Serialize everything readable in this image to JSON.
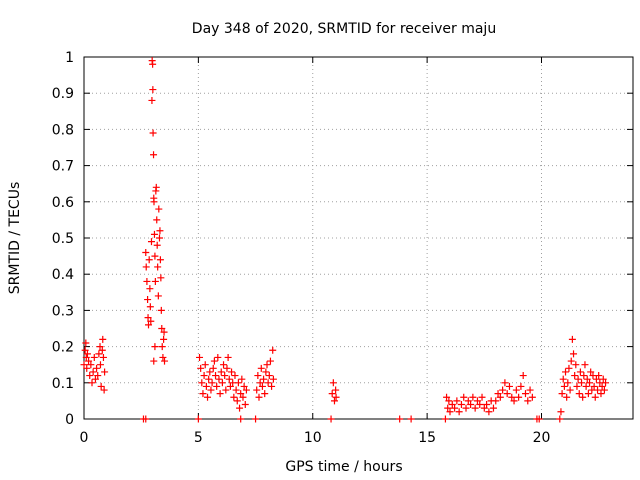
{
  "chart_data": {
    "type": "scatter",
    "title": "Day 348 of 2020, SRMTID for receiver maju",
    "xlabel": "GPS time / hours",
    "ylabel": "SRMTID / TECUs",
    "xlim": [
      0,
      24
    ],
    "ylim": [
      0,
      1
    ],
    "xticks": [
      0,
      5,
      10,
      15,
      20
    ],
    "xtick_labels": [
      "0",
      "5",
      "10",
      "15",
      "20"
    ],
    "yticks": [
      0,
      0.1,
      0.2,
      0.3,
      0.4,
      0.5,
      0.6,
      0.7,
      0.8,
      0.9,
      1
    ],
    "ytick_labels": [
      "0",
      "0.1",
      "0.2",
      "0.3",
      "0.4",
      "0.5",
      "0.6",
      "0.7",
      "0.8",
      "0.9",
      "1"
    ],
    "grid": true,
    "marker": "+",
    "color": "#ff0000",
    "series": [
      {
        "name": "SRMTID",
        "points": [
          [
            0.0,
            0.15
          ],
          [
            0.05,
            0.19
          ],
          [
            0.08,
            0.21
          ],
          [
            0.1,
            0.17
          ],
          [
            0.12,
            0.14
          ],
          [
            0.15,
            0.18
          ],
          [
            0.2,
            0.16
          ],
          [
            0.25,
            0.12
          ],
          [
            0.3,
            0.15
          ],
          [
            0.35,
            0.1
          ],
          [
            0.4,
            0.13
          ],
          [
            0.45,
            0.17
          ],
          [
            0.5,
            0.11
          ],
          [
            0.55,
            0.14
          ],
          [
            0.6,
            0.12
          ],
          [
            0.65,
            0.18
          ],
          [
            0.7,
            0.2
          ],
          [
            0.72,
            0.15
          ],
          [
            0.75,
            0.09
          ],
          [
            0.8,
            0.19
          ],
          [
            0.82,
            0.22
          ],
          [
            0.85,
            0.17
          ],
          [
            0.88,
            0.08
          ],
          [
            0.9,
            0.13
          ],
          [
            2.6,
            0.0
          ],
          [
            2.7,
            0.0
          ],
          [
            2.7,
            0.46
          ],
          [
            2.72,
            0.42
          ],
          [
            2.75,
            0.38
          ],
          [
            2.78,
            0.33
          ],
          [
            2.8,
            0.28
          ],
          [
            2.82,
            0.26
          ],
          [
            2.85,
            0.44
          ],
          [
            2.88,
            0.36
          ],
          [
            2.9,
            0.31
          ],
          [
            2.92,
            0.27
          ],
          [
            2.95,
            0.49
          ],
          [
            2.97,
            0.88
          ],
          [
            2.98,
            0.99
          ],
          [
            3.0,
            0.98
          ],
          [
            3.01,
            0.91
          ],
          [
            3.02,
            0.79
          ],
          [
            3.04,
            0.73
          ],
          [
            3.05,
            0.61
          ],
          [
            3.06,
            0.6
          ],
          [
            3.08,
            0.51
          ],
          [
            3.1,
            0.45
          ],
          [
            3.12,
            0.38
          ],
          [
            3.14,
            0.63
          ],
          [
            3.16,
            0.64
          ],
          [
            3.18,
            0.55
          ],
          [
            3.2,
            0.48
          ],
          [
            3.22,
            0.42
          ],
          [
            3.25,
            0.34
          ],
          [
            3.27,
            0.58
          ],
          [
            3.3,
            0.5
          ],
          [
            3.32,
            0.52
          ],
          [
            3.34,
            0.44
          ],
          [
            3.36,
            0.39
          ],
          [
            3.38,
            0.3
          ],
          [
            3.4,
            0.25
          ],
          [
            3.42,
            0.2
          ],
          [
            3.45,
            0.17
          ],
          [
            3.48,
            0.22
          ],
          [
            3.5,
            0.24
          ],
          [
            3.52,
            0.16
          ],
          [
            3.05,
            0.16
          ],
          [
            3.1,
            0.2
          ],
          [
            5.0,
            0.0
          ],
          [
            5.05,
            0.17
          ],
          [
            5.1,
            0.14
          ],
          [
            5.15,
            0.1
          ],
          [
            5.2,
            0.07
          ],
          [
            5.25,
            0.12
          ],
          [
            5.3,
            0.15
          ],
          [
            5.35,
            0.09
          ],
          [
            5.4,
            0.06
          ],
          [
            5.45,
            0.11
          ],
          [
            5.5,
            0.13
          ],
          [
            5.55,
            0.08
          ],
          [
            5.6,
            0.1
          ],
          [
            5.65,
            0.14
          ],
          [
            5.7,
            0.16
          ],
          [
            5.75,
            0.12
          ],
          [
            5.8,
            0.09
          ],
          [
            5.85,
            0.17
          ],
          [
            5.9,
            0.11
          ],
          [
            5.95,
            0.07
          ],
          [
            6.0,
            0.13
          ],
          [
            6.05,
            0.1
          ],
          [
            6.1,
            0.15
          ],
          [
            6.15,
            0.12
          ],
          [
            6.2,
            0.08
          ],
          [
            6.25,
            0.14
          ],
          [
            6.3,
            0.17
          ],
          [
            6.35,
            0.11
          ],
          [
            6.4,
            0.09
          ],
          [
            6.45,
            0.13
          ],
          [
            6.5,
            0.1
          ],
          [
            6.55,
            0.06
          ],
          [
            6.6,
            0.12
          ],
          [
            6.65,
            0.08
          ],
          [
            6.7,
            0.05
          ],
          [
            6.75,
            0.1
          ],
          [
            6.8,
            0.03
          ],
          [
            6.85,
            0.07
          ],
          [
            6.9,
            0.11
          ],
          [
            6.95,
            0.06
          ],
          [
            7.0,
            0.09
          ],
          [
            7.05,
            0.04
          ],
          [
            7.1,
            0.08
          ],
          [
            6.85,
            0.0
          ],
          [
            7.5,
            0.0
          ],
          [
            7.55,
            0.08
          ],
          [
            7.6,
            0.12
          ],
          [
            7.65,
            0.06
          ],
          [
            7.7,
            0.1
          ],
          [
            7.75,
            0.14
          ],
          [
            7.8,
            0.09
          ],
          [
            7.85,
            0.11
          ],
          [
            7.9,
            0.07
          ],
          [
            7.95,
            0.13
          ],
          [
            8.0,
            0.15
          ],
          [
            8.05,
            0.1
          ],
          [
            8.1,
            0.12
          ],
          [
            8.15,
            0.16
          ],
          [
            8.2,
            0.09
          ],
          [
            8.25,
            0.19
          ],
          [
            8.28,
            0.11
          ],
          [
            10.8,
            0.0
          ],
          [
            10.85,
            0.07
          ],
          [
            10.9,
            0.1
          ],
          [
            10.95,
            0.05
          ],
          [
            11.0,
            0.08
          ],
          [
            11.02,
            0.06
          ],
          [
            13.8,
            0.0
          ],
          [
            14.3,
            0.0
          ],
          [
            15.8,
            0.0
          ],
          [
            15.85,
            0.06
          ],
          [
            15.9,
            0.03
          ],
          [
            15.95,
            0.05
          ],
          [
            16.0,
            0.02
          ],
          [
            16.1,
            0.04
          ],
          [
            16.2,
            0.03
          ],
          [
            16.3,
            0.05
          ],
          [
            16.4,
            0.02
          ],
          [
            16.5,
            0.04
          ],
          [
            16.6,
            0.06
          ],
          [
            16.7,
            0.03
          ],
          [
            16.8,
            0.05
          ],
          [
            16.9,
            0.04
          ],
          [
            17.0,
            0.06
          ],
          [
            17.1,
            0.03
          ],
          [
            17.2,
            0.05
          ],
          [
            17.3,
            0.04
          ],
          [
            17.4,
            0.06
          ],
          [
            17.5,
            0.03
          ],
          [
            17.6,
            0.04
          ],
          [
            17.7,
            0.02
          ],
          [
            17.8,
            0.05
          ],
          [
            17.9,
            0.03
          ],
          [
            18.0,
            0.05
          ],
          [
            18.1,
            0.07
          ],
          [
            18.2,
            0.06
          ],
          [
            18.3,
            0.08
          ],
          [
            18.4,
            0.1
          ],
          [
            18.5,
            0.07
          ],
          [
            18.6,
            0.09
          ],
          [
            18.7,
            0.06
          ],
          [
            18.8,
            0.05
          ],
          [
            18.9,
            0.08
          ],
          [
            19.0,
            0.06
          ],
          [
            19.1,
            0.09
          ],
          [
            19.2,
            0.12
          ],
          [
            19.3,
            0.07
          ],
          [
            19.4,
            0.05
          ],
          [
            19.5,
            0.08
          ],
          [
            19.6,
            0.06
          ],
          [
            19.8,
            0.0
          ],
          [
            19.9,
            0.0
          ],
          [
            20.8,
            0.0
          ],
          [
            20.85,
            0.02
          ],
          [
            20.9,
            0.07
          ],
          [
            20.95,
            0.11
          ],
          [
            21.0,
            0.09
          ],
          [
            21.05,
            0.13
          ],
          [
            21.1,
            0.06
          ],
          [
            21.15,
            0.1
          ],
          [
            21.2,
            0.14
          ],
          [
            21.25,
            0.08
          ],
          [
            21.3,
            0.16
          ],
          [
            21.35,
            0.22
          ],
          [
            21.4,
            0.18
          ],
          [
            21.45,
            0.12
          ],
          [
            21.5,
            0.15
          ],
          [
            21.55,
            0.09
          ],
          [
            21.6,
            0.11
          ],
          [
            21.65,
            0.07
          ],
          [
            21.7,
            0.13
          ],
          [
            21.75,
            0.1
          ],
          [
            21.8,
            0.06
          ],
          [
            21.85,
            0.12
          ],
          [
            21.9,
            0.15
          ],
          [
            21.95,
            0.09
          ],
          [
            22.0,
            0.11
          ],
          [
            22.05,
            0.07
          ],
          [
            22.1,
            0.1
          ],
          [
            22.15,
            0.13
          ],
          [
            22.2,
            0.08
          ],
          [
            22.25,
            0.12
          ],
          [
            22.3,
            0.09
          ],
          [
            22.35,
            0.06
          ],
          [
            22.4,
            0.11
          ],
          [
            22.45,
            0.08
          ],
          [
            22.5,
            0.12
          ],
          [
            22.55,
            0.1
          ],
          [
            22.6,
            0.07
          ],
          [
            22.65,
            0.09
          ],
          [
            22.7,
            0.11
          ],
          [
            22.75,
            0.08
          ],
          [
            22.8,
            0.1
          ]
        ]
      }
    ]
  }
}
